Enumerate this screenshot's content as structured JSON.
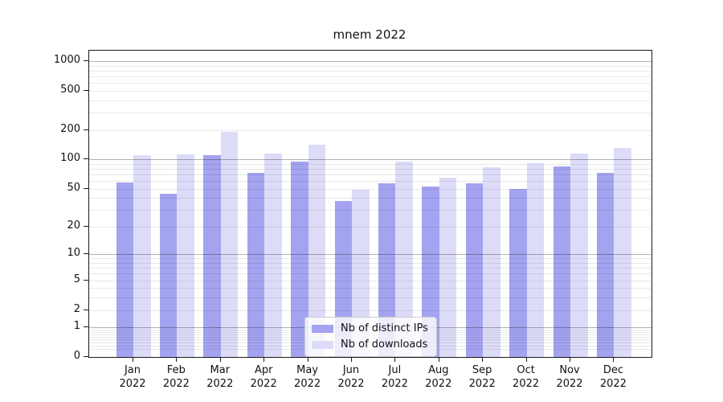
{
  "chart_data": {
    "type": "bar",
    "title": "mnem 2022",
    "categories": [
      "Jan 2022",
      "Feb 2022",
      "Mar 2022",
      "Apr 2022",
      "May 2022",
      "Jun 2022",
      "Jul 2022",
      "Aug 2022",
      "Sep 2022",
      "Oct 2022",
      "Nov 2022",
      "Dec 2022"
    ],
    "series": [
      {
        "name": "Nb of distinct IPs",
        "color": "#a3a3f0",
        "values": [
          58,
          44,
          110,
          73,
          94,
          37,
          57,
          53,
          57,
          50,
          84,
          73
        ]
      },
      {
        "name": "Nb of downloads",
        "color": "#dcdcf8",
        "values": [
          110,
          112,
          192,
          115,
          140,
          49,
          95,
          65,
          83,
          91,
          115,
          130
        ]
      }
    ],
    "xlabel": "",
    "ylabel": "",
    "yscale": "log1p",
    "ylim": [
      0,
      1275
    ],
    "yticks": [
      0,
      1,
      2,
      5,
      10,
      20,
      50,
      100,
      200,
      500,
      1000
    ],
    "ygrid_major": [
      1,
      10,
      100,
      1000
    ],
    "ygrid_minor": [
      0.2,
      0.3,
      0.4,
      0.5,
      0.6,
      0.7,
      0.8,
      0.9,
      2,
      3,
      4,
      5,
      6,
      7,
      8,
      9,
      20,
      30,
      40,
      50,
      60,
      70,
      80,
      90,
      200,
      300,
      400,
      500,
      600,
      700,
      800,
      900
    ],
    "grid": true,
    "legend_position": "lower center"
  }
}
